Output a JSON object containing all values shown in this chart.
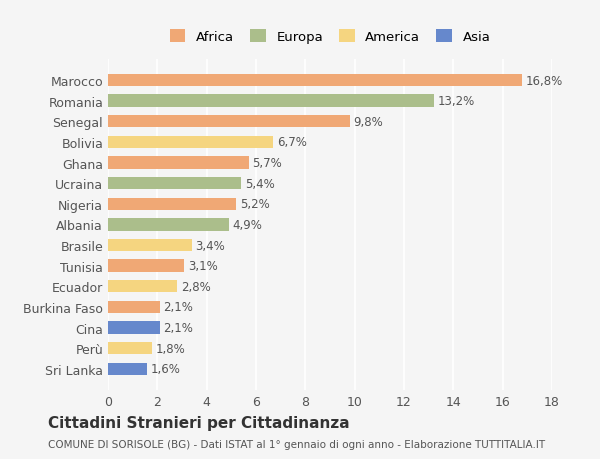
{
  "countries": [
    "Sri Lanka",
    "Perù",
    "Cina",
    "Burkina Faso",
    "Ecuador",
    "Tunisia",
    "Brasile",
    "Albania",
    "Nigeria",
    "Ucraina",
    "Ghana",
    "Bolivia",
    "Senegal",
    "Romania",
    "Marocco"
  ],
  "values": [
    1.6,
    1.8,
    2.1,
    2.1,
    2.8,
    3.1,
    3.4,
    4.9,
    5.2,
    5.4,
    5.7,
    6.7,
    9.8,
    13.2,
    16.8
  ],
  "continents": [
    "Asia",
    "America",
    "Asia",
    "Africa",
    "America",
    "Africa",
    "America",
    "Europa",
    "Africa",
    "Europa",
    "Africa",
    "America",
    "Africa",
    "Europa",
    "Africa"
  ],
  "continent_colors": {
    "Africa": "#F0A875",
    "Europa": "#ABBE8B",
    "America": "#F5D580",
    "Asia": "#6688CC"
  },
  "label_values": [
    "1,6%",
    "1,8%",
    "2,1%",
    "2,1%",
    "2,8%",
    "3,1%",
    "3,4%",
    "4,9%",
    "5,2%",
    "5,4%",
    "5,7%",
    "6,7%",
    "9,8%",
    "13,2%",
    "16,8%"
  ],
  "xlim": [
    0,
    18
  ],
  "xticks": [
    0,
    2,
    4,
    6,
    8,
    10,
    12,
    14,
    16,
    18
  ],
  "title": "Cittadini Stranieri per Cittadinanza",
  "subtitle": "COMUNE DI SORISOLE (BG) - Dati ISTAT al 1° gennaio di ogni anno - Elaborazione TUTTITALIA.IT",
  "bg_color": "#F5F5F5",
  "grid_color": "#FFFFFF",
  "legend_items": [
    "Africa",
    "Europa",
    "America",
    "Asia"
  ]
}
